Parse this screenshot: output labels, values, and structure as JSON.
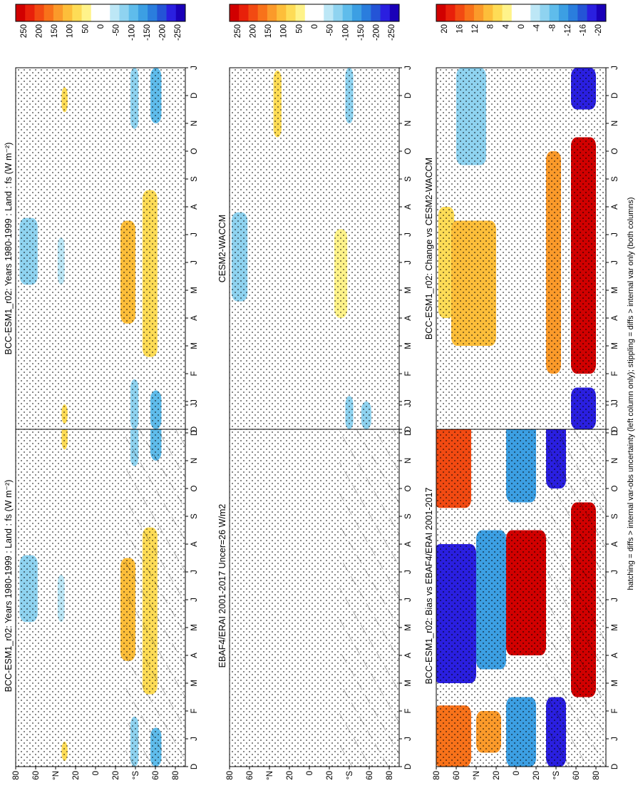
{
  "footnote": "hatching = diffs > internal var-obs uncertainty (left column only); stippling = diffs > internal var only (both columns)",
  "months": [
    "D",
    "J",
    "F",
    "M",
    "A",
    "M",
    "J",
    "J",
    "A",
    "S",
    "O",
    "N",
    "D",
    "J"
  ],
  "lat_ticks": [
    "80",
    "60",
    "°N",
    "20",
    "0",
    "20",
    "°S",
    "60",
    "80"
  ],
  "cbar_large": [
    "250",
    "200",
    "150",
    "100",
    "50",
    "0",
    "-50",
    "-100",
    "-150",
    "-200",
    "-250"
  ],
  "cbar_small": [
    "20",
    "16",
    "12",
    "8",
    "4",
    "0",
    "-4",
    "-8",
    "-12",
    "-16",
    "-20"
  ],
  "palette": [
    "#d10000",
    "#e8200a",
    "#f24a12",
    "#f8721a",
    "#fb9a2a",
    "#fdbe3a",
    "#fedc56",
    "#fff38a",
    "#ffffff",
    "#ffffff",
    "#bde7f6",
    "#8fd3f0",
    "#5fbceb",
    "#3c9fe3",
    "#2a7ddd",
    "#2454d6",
    "#2a1fe0",
    "#1a00b8"
  ],
  "panels": [
    {
      "title": "BCC-ESM1_r02: Years 1980-1999 : Land : fs (W m⁻²)",
      "scale": "large"
    },
    {
      "title": "BCC-ESM1_r02: Years 1980-1999 : Land : fs (W m⁻²)",
      "scale": "large"
    },
    {
      "title": "EBAF4/ERAI 2001-2017 Uncer=26 W/m2",
      "scale": "large"
    },
    {
      "title": "CESM2-WACCM",
      "scale": "large"
    },
    {
      "title": "BCC-ESM1_r02: Bias vs EBAF4/ERAI 2001-2017",
      "scale": "small"
    },
    {
      "title": "BCC-ESM1_r02: Change vs CESM2-WACCM",
      "scale": "small"
    }
  ],
  "chart_data": {
    "type": "heatmap",
    "x_axis": "month (Dec through Jan of following year)",
    "y_axis": "latitude (80°N to 80°S)",
    "colorbar_large_range": [
      -250,
      250
    ],
    "colorbar_small_range": [
      -20,
      20
    ],
    "patches": {
      "model_a": [
        {
          "lat": [
            76,
            58
          ],
          "month": [
            5.2,
            7.6
          ],
          "value": -60
        },
        {
          "lat": [
            38,
            31
          ],
          "month": [
            5.2,
            6.9
          ],
          "value": -55
        },
        {
          "lat": [
            34,
            28
          ],
          "month": [
            0.2,
            0.9
          ],
          "value": 70
        },
        {
          "lat": [
            34,
            28
          ],
          "month": [
            11.4,
            12.3
          ],
          "value": 70
        },
        {
          "lat": [
            -25,
            -40
          ],
          "month": [
            3.8,
            7.5
          ],
          "value": 90
        },
        {
          "lat": [
            -47,
            -62
          ],
          "month": [
            2.6,
            8.6
          ],
          "value": 80
        },
        {
          "lat": [
            -35,
            -43
          ],
          "month": [
            0,
            1.8
          ],
          "value": -70
        },
        {
          "lat": [
            -35,
            -43
          ],
          "month": [
            10.8,
            13
          ],
          "value": -70
        },
        {
          "lat": [
            -55,
            -66
          ],
          "month": [
            0,
            1.4
          ],
          "value": -90
        },
        {
          "lat": [
            -55,
            -66
          ],
          "month": [
            11.0,
            13
          ],
          "value": -90
        }
      ],
      "model_b": [
        {
          "lat": [
            78,
            62
          ],
          "month": [
            4.6,
            7.8
          ],
          "value": -60
        },
        {
          "lat": [
            36,
            28
          ],
          "month": [
            10.5,
            12.9
          ],
          "value": 60
        },
        {
          "lat": [
            -25,
            -38
          ],
          "month": [
            4.0,
            7.2
          ],
          "value": 50
        },
        {
          "lat": [
            -36,
            -44
          ],
          "month": [
            0,
            1.2
          ],
          "value": -60
        },
        {
          "lat": [
            -36,
            -44
          ],
          "month": [
            11.0,
            13
          ],
          "value": -60
        },
        {
          "lat": [
            -52,
            -62
          ],
          "month": [
            0,
            1.0
          ],
          "value": -70
        }
      ],
      "bias": [
        {
          "lat": [
            82,
            45
          ],
          "month": [
            0,
            2.2
          ],
          "value": 14
        },
        {
          "lat": [
            82,
            45
          ],
          "month": [
            9.3,
            13
          ],
          "value": 16
        },
        {
          "lat": [
            82,
            40
          ],
          "month": [
            3.0,
            8.0
          ],
          "value": -18
        },
        {
          "lat": [
            40,
            15
          ],
          "month": [
            0.5,
            2.0
          ],
          "value": 10
        },
        {
          "lat": [
            40,
            10
          ],
          "month": [
            3.5,
            8.5
          ],
          "value": -10
        },
        {
          "lat": [
            10,
            -30
          ],
          "month": [
            4.0,
            8.5
          ],
          "value": 20
        },
        {
          "lat": [
            10,
            -20
          ],
          "month": [
            0,
            2.5
          ],
          "value": -10
        },
        {
          "lat": [
            10,
            -20
          ],
          "month": [
            9.5,
            13
          ],
          "value": -10
        },
        {
          "lat": [
            -30,
            -50
          ],
          "month": [
            0,
            2.5
          ],
          "value": -18
        },
        {
          "lat": [
            -30,
            -50
          ],
          "month": [
            10,
            13
          ],
          "value": -18
        },
        {
          "lat": [
            -55,
            -80
          ],
          "month": [
            2.5,
            9.5
          ],
          "value": 20
        }
      ],
      "change": [
        {
          "lat": [
            78,
            62
          ],
          "month": [
            4.0,
            8.0
          ],
          "value": 6
        },
        {
          "lat": [
            65,
            20
          ],
          "month": [
            3.0,
            7.5
          ],
          "value": 8
        },
        {
          "lat": [
            60,
            30
          ],
          "month": [
            9.5,
            13
          ],
          "value": -6
        },
        {
          "lat": [
            -30,
            -45
          ],
          "month": [
            2.0,
            10.0
          ],
          "value": 10
        },
        {
          "lat": [
            -55,
            -80
          ],
          "month": [
            2.0,
            10.5
          ],
          "value": 20
        },
        {
          "lat": [
            -55,
            -80
          ],
          "month": [
            0,
            1.5
          ],
          "value": -18
        },
        {
          "lat": [
            -55,
            -80
          ],
          "month": [
            11.5,
            13
          ],
          "value": -18
        }
      ]
    }
  }
}
